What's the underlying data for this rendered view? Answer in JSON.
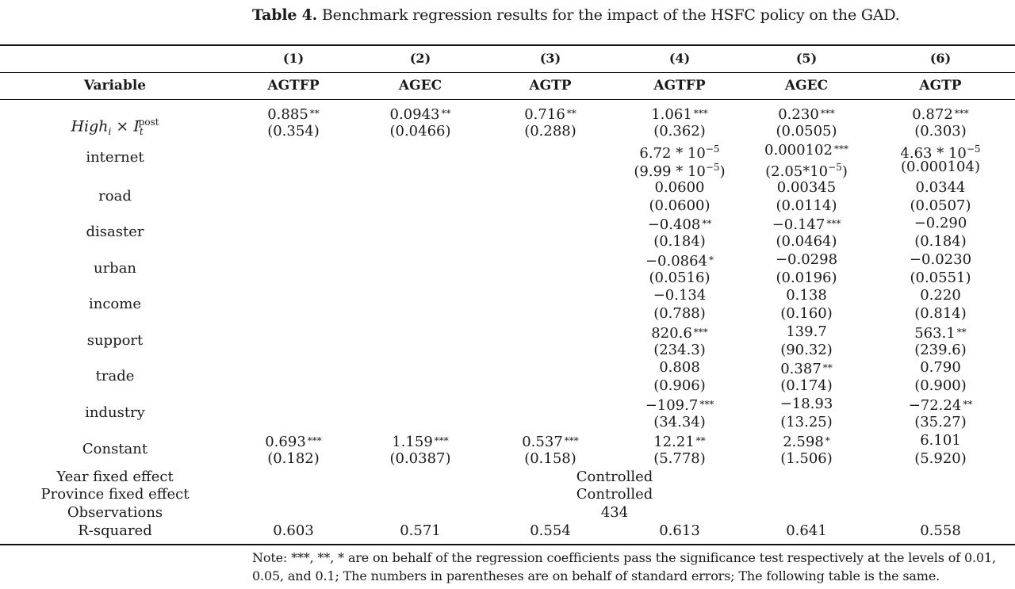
{
  "caption": {
    "label": "Table 4.",
    "text": "Benchmark regression results for the impact of the HSFC policy on the GAD."
  },
  "header": {
    "variable_label": "Variable",
    "col_numbers": [
      "(1)",
      "(2)",
      "(3)",
      "(4)",
      "(5)",
      "(6)"
    ],
    "dependent_vars": [
      "AGTFP",
      "AGEC",
      "AGTP",
      "AGTFP",
      "AGEC",
      "AGTP"
    ]
  },
  "rows": [
    {
      "variable": "High_i × I_t^post",
      "values": [
        {
          "coef": "0.885",
          "stars": "**",
          "se": "(0.354)"
        },
        {
          "coef": "0.0943",
          "stars": "**",
          "se": "(0.0466)"
        },
        {
          "coef": "0.716",
          "stars": "**",
          "se": "(0.288)"
        },
        {
          "coef": "1.061",
          "stars": "***",
          "se": "(0.362)"
        },
        {
          "coef": "0.230",
          "stars": "***",
          "se": "(0.0505)"
        },
        {
          "coef": "0.872",
          "stars": "***",
          "se": "(0.303)"
        }
      ]
    },
    {
      "variable": "internet",
      "values": [
        {
          "coef": "",
          "stars": "",
          "se": ""
        },
        {
          "coef": "",
          "stars": "",
          "se": ""
        },
        {
          "coef": "",
          "stars": "",
          "se": ""
        },
        {
          "coef": "6.72 * 10",
          "exp": "−5",
          "stars": "",
          "se": "(9.99 * 10",
          "se_exp": "−5",
          "se_close": ")"
        },
        {
          "coef": "0.000102",
          "stars": "***",
          "se": "(2.05*10",
          "se_exp": "−5",
          "se_close": ")"
        },
        {
          "coef": "4.63 * 10",
          "exp": "−5",
          "stars": "",
          "se": "(0.000104)"
        }
      ]
    },
    {
      "variable": "road",
      "values": [
        {
          "coef": "",
          "stars": "",
          "se": ""
        },
        {
          "coef": "",
          "stars": "",
          "se": ""
        },
        {
          "coef": "",
          "stars": "",
          "se": ""
        },
        {
          "coef": "0.0600",
          "stars": "",
          "se": "(0.0600)"
        },
        {
          "coef": "0.00345",
          "stars": "",
          "se": "(0.0114)"
        },
        {
          "coef": "0.0344",
          "stars": "",
          "se": "(0.0507)"
        }
      ]
    },
    {
      "variable": "disaster",
      "values": [
        {
          "coef": "",
          "stars": "",
          "se": ""
        },
        {
          "coef": "",
          "stars": "",
          "se": ""
        },
        {
          "coef": "",
          "stars": "",
          "se": ""
        },
        {
          "coef": "−0.408",
          "stars": "**",
          "se": "(0.184)"
        },
        {
          "coef": "−0.147",
          "stars": "***",
          "se": "(0.0464)"
        },
        {
          "coef": "−0.290",
          "stars": "",
          "se": "(0.184)"
        }
      ]
    },
    {
      "variable": "urban",
      "values": [
        {
          "coef": "",
          "stars": "",
          "se": ""
        },
        {
          "coef": "",
          "stars": "",
          "se": ""
        },
        {
          "coef": "",
          "stars": "",
          "se": ""
        },
        {
          "coef": "−0.0864",
          "stars": "*",
          "se": "(0.0516)"
        },
        {
          "coef": "−0.0298",
          "stars": "",
          "se": "(0.0196)"
        },
        {
          "coef": "−0.0230",
          "stars": "",
          "se": "(0.0551)"
        }
      ]
    },
    {
      "variable": "income",
      "values": [
        {
          "coef": "",
          "stars": "",
          "se": ""
        },
        {
          "coef": "",
          "stars": "",
          "se": ""
        },
        {
          "coef": "",
          "stars": "",
          "se": ""
        },
        {
          "coef": "−0.134",
          "stars": "",
          "se": "(0.788)"
        },
        {
          "coef": "0.138",
          "stars": "",
          "se": "(0.160)"
        },
        {
          "coef": "0.220",
          "stars": "",
          "se": "(0.814)"
        }
      ]
    },
    {
      "variable": "support",
      "values": [
        {
          "coef": "",
          "stars": "",
          "se": ""
        },
        {
          "coef": "",
          "stars": "",
          "se": ""
        },
        {
          "coef": "",
          "stars": "",
          "se": ""
        },
        {
          "coef": "820.6",
          "stars": "***",
          "se": "(234.3)"
        },
        {
          "coef": "139.7",
          "stars": "",
          "se": "(90.32)"
        },
        {
          "coef": "563.1",
          "stars": "**",
          "se": "(239.6)"
        }
      ]
    },
    {
      "variable": "trade",
      "values": [
        {
          "coef": "",
          "stars": "",
          "se": ""
        },
        {
          "coef": "",
          "stars": "",
          "se": ""
        },
        {
          "coef": "",
          "stars": "",
          "se": ""
        },
        {
          "coef": "0.808",
          "stars": "",
          "se": "(0.906)"
        },
        {
          "coef": "0.387",
          "stars": "**",
          "se": "(0.174)"
        },
        {
          "coef": "0.790",
          "stars": "",
          "se": "(0.900)"
        }
      ]
    },
    {
      "variable": "industry",
      "values": [
        {
          "coef": "",
          "stars": "",
          "se": ""
        },
        {
          "coef": "",
          "stars": "",
          "se": ""
        },
        {
          "coef": "",
          "stars": "",
          "se": ""
        },
        {
          "coef": "−109.7",
          "stars": "***",
          "se": "(34.34)"
        },
        {
          "coef": "−18.93",
          "stars": "",
          "se": "(13.25)"
        },
        {
          "coef": "−72.24",
          "stars": "**",
          "se": "(35.27)"
        }
      ]
    },
    {
      "variable": "Constant",
      "values": [
        {
          "coef": "0.693",
          "stars": "***",
          "se": "(0.182)"
        },
        {
          "coef": "1.159",
          "stars": "***",
          "se": "(0.0387)"
        },
        {
          "coef": "0.537",
          "stars": "***",
          "se": "(0.158)"
        },
        {
          "coef": "12.21",
          "stars": "**",
          "se": "(5.778)"
        },
        {
          "coef": "2.598",
          "stars": "*",
          "se": "(1.506)"
        },
        {
          "coef": "6.101",
          "stars": "",
          "se": "(5.920)"
        }
      ]
    }
  ],
  "summary": {
    "year_fe_label": "Year fixed effect",
    "year_fe_value": "Controlled",
    "province_fe_label": "Province fixed effect",
    "province_fe_value": "Controlled",
    "observations_label": "Observations",
    "observations_value": "434",
    "r2_label": "R-squared",
    "r2_values": [
      "0.603",
      "0.571",
      "0.554",
      "0.613",
      "0.641",
      "0.558"
    ]
  },
  "note": "Note: ***, **, * are on behalf of the regression coefficients pass the significance test respectively at the levels of 0.01, 0.05, and 0.1; The numbers in parentheses are on behalf of standard errors; The following table is the same."
}
